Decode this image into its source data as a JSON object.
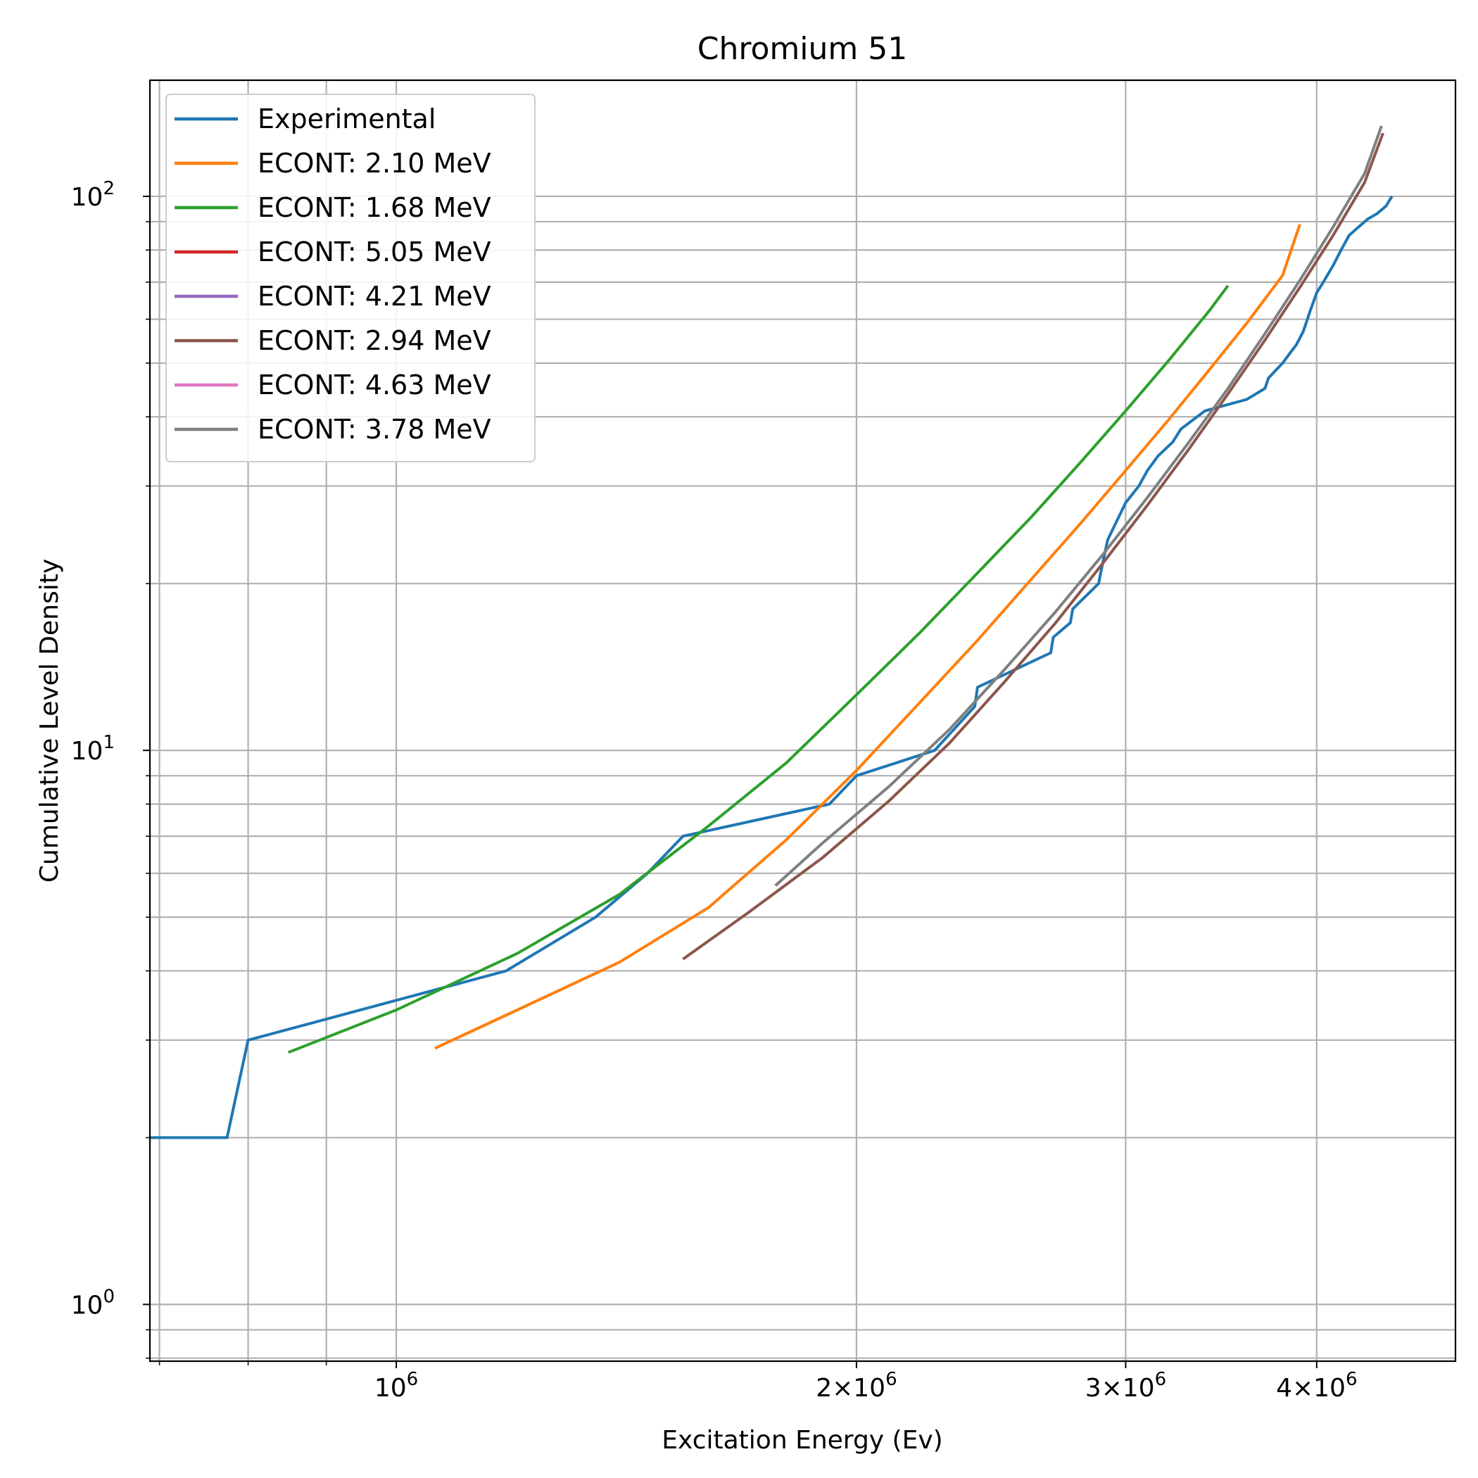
{
  "chart_data": {
    "type": "line",
    "title": "Chromium 51",
    "xlabel": "Excitation Energy (Ev)",
    "ylabel": "Cumulative Level Density",
    "xscale": "log",
    "yscale": "log",
    "xlim": [
      690000,
      4930000
    ],
    "ylim": [
      0.79,
      162
    ],
    "grid": true,
    "legend_position": "top-left",
    "x_ticks": [
      {
        "value": 1000000,
        "base": "10",
        "exp": "6",
        "coef": ""
      },
      {
        "value": 2000000,
        "base": "10",
        "exp": "6",
        "coef": "2×"
      },
      {
        "value": 3000000,
        "base": "10",
        "exp": "6",
        "coef": "3×"
      },
      {
        "value": 4000000,
        "base": "10",
        "exp": "6",
        "coef": "4×"
      }
    ],
    "y_ticks": [
      {
        "value": 1,
        "base": "10",
        "exp": "0"
      },
      {
        "value": 10,
        "base": "10",
        "exp": "1"
      },
      {
        "value": 100,
        "base": "10",
        "exp": "2"
      }
    ],
    "series": [
      {
        "name": "Experimental",
        "color": "#1f77b4",
        "x": [
          690000,
          775000,
          800000,
          1180000,
          1350000,
          1460000,
          1540000,
          1920000,
          2000000,
          2250000,
          2390000,
          2400000,
          2680000,
          2690000,
          2760000,
          2770000,
          2880000,
          2900000,
          2920000,
          3000000,
          3060000,
          3100000,
          3150000,
          3220000,
          3260000,
          3380000,
          3600000,
          3700000,
          3720000,
          3800000,
          3840000,
          3880000,
          3920000,
          3960000,
          4000000,
          4040000,
          4100000,
          4150000,
          4200000,
          4260000,
          4320000,
          4380000,
          4440000,
          4480000
        ],
        "y": [
          2,
          2,
          3,
          4,
          5,
          6,
          7,
          8,
          9,
          10,
          12,
          13,
          15,
          16,
          17,
          18,
          20,
          22,
          24,
          28,
          30,
          32,
          34,
          36,
          38,
          41,
          43,
          45,
          47,
          50,
          52,
          54,
          57,
          62,
          67,
          70,
          75,
          80,
          85,
          88,
          91,
          93,
          96,
          100
        ]
      },
      {
        "name": "ECONT: 2.10 MeV",
        "color": "#ff7f0e",
        "x": [
          1060000,
          1200000,
          1400000,
          1600000,
          1800000,
          2000000,
          2200000,
          2400000,
          2600000,
          2800000,
          3000000,
          3200000,
          3400000,
          3600000,
          3800000,
          3900000
        ],
        "y": [
          2.9,
          3.4,
          4.15,
          5.2,
          6.9,
          9.2,
          12.2,
          15.8,
          20.3,
          25.6,
          32.0,
          39.5,
          48.5,
          59.0,
          72.0,
          89.0
        ]
      },
      {
        "name": "ECONT: 1.68 MeV",
        "color": "#2ca02c",
        "x": [
          850000,
          1000000,
          1200000,
          1400000,
          1600000,
          1800000,
          2000000,
          2200000,
          2400000,
          2600000,
          2800000,
          3000000,
          3200000,
          3400000,
          3500000
        ],
        "y": [
          2.85,
          3.4,
          4.3,
          5.5,
          7.3,
          9.5,
          12.6,
          16.3,
          20.9,
          26.3,
          33.0,
          41.0,
          50.5,
          62.0,
          69.0
        ]
      },
      {
        "name": "ECONT: 5.05 MeV",
        "color": "#d62728",
        "x": [],
        "y": []
      },
      {
        "name": "ECONT: 4.21 MeV",
        "color": "#9467bd",
        "x": [],
        "y": []
      },
      {
        "name": "ECONT: 2.94 MeV",
        "color": "#8c564b",
        "x": [
          1540000,
          1700000,
          1900000,
          2100000,
          2300000,
          2500000,
          2700000,
          2900000,
          3100000,
          3300000,
          3500000,
          3700000,
          3900000,
          4100000,
          4300000,
          4420000
        ],
        "y": [
          4.2,
          5.1,
          6.4,
          8.1,
          10.3,
          13.3,
          17.0,
          21.8,
          27.7,
          35.0,
          44.0,
          55.0,
          68.5,
          85.0,
          106.0,
          130.0
        ]
      },
      {
        "name": "ECONT: 4.63 MeV",
        "color": "#e377c2",
        "x": [],
        "y": []
      },
      {
        "name": "ECONT: 3.78 MeV",
        "color": "#7f7f7f",
        "x": [
          1770000,
          1900000,
          2100000,
          2300000,
          2500000,
          2700000,
          2900000,
          3100000,
          3300000,
          3500000,
          3700000,
          3900000,
          4100000,
          4300000,
          4410000
        ],
        "y": [
          5.7,
          6.8,
          8.6,
          10.9,
          14.0,
          17.8,
          22.6,
          28.6,
          36.0,
          45.0,
          56.5,
          70.5,
          88.0,
          110.0,
          134.0
        ]
      }
    ]
  }
}
